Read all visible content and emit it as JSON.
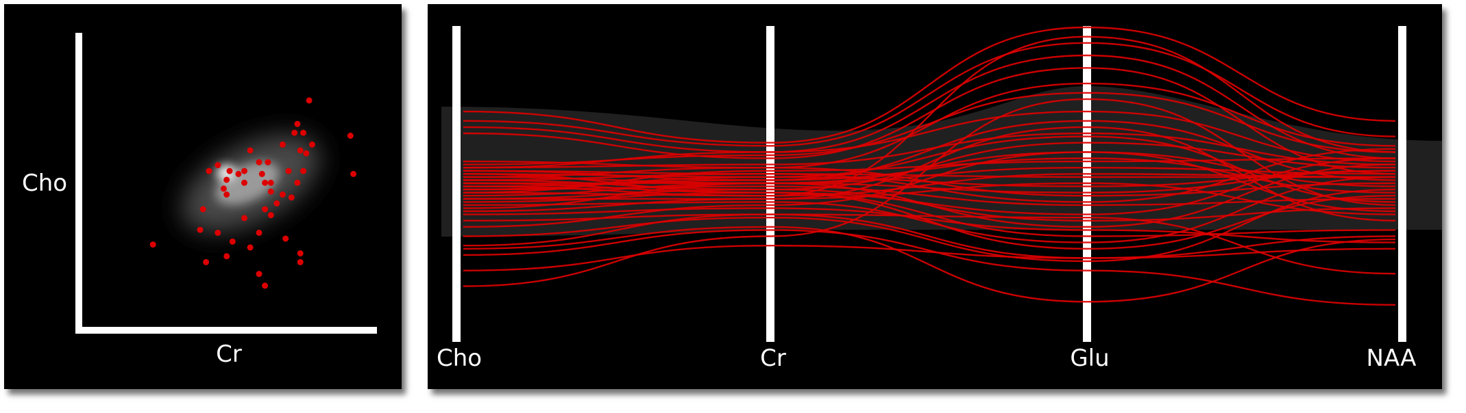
{
  "colors": {
    "background": "#000000",
    "axis": "#ffffff",
    "highlight": "#dd0000",
    "density": "#bdbdbd"
  },
  "chart_data": [
    {
      "type": "scatter",
      "xlabel": "Cr",
      "ylabel": "Cho",
      "xlim": [
        0,
        1
      ],
      "ylim": [
        0,
        1
      ],
      "points": [
        [
          0.77,
          0.77
        ],
        [
          0.73,
          0.69
        ],
        [
          0.72,
          0.66
        ],
        [
          0.75,
          0.66
        ],
        [
          0.68,
          0.62
        ],
        [
          0.78,
          0.62
        ],
        [
          0.91,
          0.65
        ],
        [
          0.74,
          0.6
        ],
        [
          0.76,
          0.59
        ],
        [
          0.57,
          0.6
        ],
        [
          0.6,
          0.56
        ],
        [
          0.63,
          0.56
        ],
        [
          0.46,
          0.55
        ],
        [
          0.43,
          0.53
        ],
        [
          0.5,
          0.53
        ],
        [
          0.49,
          0.5
        ],
        [
          0.55,
          0.53
        ],
        [
          0.75,
          0.53
        ],
        [
          0.61,
          0.52
        ],
        [
          0.53,
          0.52
        ],
        [
          0.55,
          0.49
        ],
        [
          0.62,
          0.49
        ],
        [
          0.64,
          0.49
        ],
        [
          0.64,
          0.46
        ],
        [
          0.7,
          0.53
        ],
        [
          0.73,
          0.49
        ],
        [
          0.92,
          0.52
        ],
        [
          0.48,
          0.47
        ],
        [
          0.49,
          0.45
        ],
        [
          0.66,
          0.42
        ],
        [
          0.68,
          0.45
        ],
        [
          0.62,
          0.4
        ],
        [
          0.64,
          0.38
        ],
        [
          0.55,
          0.37
        ],
        [
          0.41,
          0.4
        ],
        [
          0.4,
          0.33
        ],
        [
          0.71,
          0.44
        ],
        [
          0.46,
          0.32
        ],
        [
          0.51,
          0.29
        ],
        [
          0.6,
          0.32
        ],
        [
          0.57,
          0.27
        ],
        [
          0.69,
          0.3
        ],
        [
          0.74,
          0.25
        ],
        [
          0.49,
          0.24
        ],
        [
          0.74,
          0.22
        ],
        [
          0.24,
          0.28
        ],
        [
          0.42,
          0.22
        ],
        [
          0.6,
          0.18
        ],
        [
          0.62,
          0.14
        ]
      ]
    },
    {
      "type": "line",
      "axes": [
        "Cho",
        "Cr",
        "Glu",
        "NAA"
      ],
      "ylim": [
        0,
        1
      ],
      "series": [
        {
          "values": [
            0.73,
            0.63,
            1.0,
            0.7
          ]
        },
        {
          "values": [
            0.7,
            0.62,
            0.95,
            0.65
          ]
        },
        {
          "values": [
            0.68,
            0.6,
            0.91,
            0.58
          ]
        },
        {
          "values": [
            0.66,
            0.58,
            0.87,
            0.53
          ]
        },
        {
          "values": [
            0.57,
            0.55,
            0.82,
            0.62
          ]
        },
        {
          "values": [
            0.56,
            0.59,
            0.79,
            0.6
          ]
        },
        {
          "values": [
            0.55,
            0.6,
            0.73,
            0.57
          ]
        },
        {
          "values": [
            0.55,
            0.56,
            0.66,
            0.56
          ]
        },
        {
          "values": [
            0.54,
            0.51,
            0.7,
            0.51
          ]
        },
        {
          "values": [
            0.54,
            0.53,
            0.52,
            0.52
          ]
        },
        {
          "values": [
            0.53,
            0.52,
            0.49,
            0.54
          ]
        },
        {
          "values": [
            0.52,
            0.5,
            0.6,
            0.49
          ]
        },
        {
          "values": [
            0.52,
            0.55,
            0.46,
            0.5
          ]
        },
        {
          "values": [
            0.51,
            0.48,
            0.63,
            0.55
          ]
        },
        {
          "values": [
            0.51,
            0.53,
            0.44,
            0.61
          ]
        },
        {
          "values": [
            0.5,
            0.5,
            0.55,
            0.53
          ]
        },
        {
          "values": [
            0.5,
            0.47,
            0.4,
            0.58
          ]
        },
        {
          "values": [
            0.49,
            0.51,
            0.58,
            0.47
          ]
        },
        {
          "values": [
            0.48,
            0.49,
            0.43,
            0.45
          ]
        },
        {
          "values": [
            0.48,
            0.52,
            0.65,
            0.44
          ]
        },
        {
          "values": [
            0.47,
            0.46,
            0.53,
            0.52
          ]
        },
        {
          "values": [
            0.46,
            0.5,
            0.36,
            0.56
          ]
        },
        {
          "values": [
            0.45,
            0.48,
            0.38,
            0.42
          ]
        },
        {
          "values": [
            0.45,
            0.45,
            0.5,
            0.4
          ]
        },
        {
          "values": [
            0.44,
            0.47,
            0.33,
            0.35
          ]
        },
        {
          "values": [
            0.43,
            0.44,
            0.31,
            0.52
          ]
        },
        {
          "values": [
            0.41,
            0.45,
            0.68,
            0.38
          ]
        },
        {
          "values": [
            0.4,
            0.42,
            0.35,
            0.31
          ]
        },
        {
          "values": [
            0.38,
            0.4,
            0.26,
            0.29
          ]
        },
        {
          "values": [
            0.36,
            0.43,
            0.6,
            0.41
          ]
        },
        {
          "values": [
            0.33,
            0.39,
            0.25,
            0.48
          ]
        },
        {
          "values": [
            0.3,
            0.4,
            0.39,
            0.21
          ]
        },
        {
          "values": [
            0.29,
            0.36,
            0.12,
            0.32
          ]
        },
        {
          "values": [
            0.27,
            0.35,
            0.22,
            0.11
          ]
        },
        {
          "values": [
            0.22,
            0.3,
            0.26,
            0.33
          ]
        },
        {
          "values": [
            0.17,
            0.33,
            0.77,
            0.43
          ]
        },
        {
          "values": [
            0.49,
            0.46,
            0.97,
            0.6
          ]
        },
        {
          "values": [
            0.47,
            0.54,
            0.57,
            0.58
          ]
        },
        {
          "values": [
            0.53,
            0.47,
            0.29,
            0.46
          ]
        },
        {
          "values": [
            0.42,
            0.5,
            0.47,
            0.54
          ]
        }
      ]
    }
  ]
}
